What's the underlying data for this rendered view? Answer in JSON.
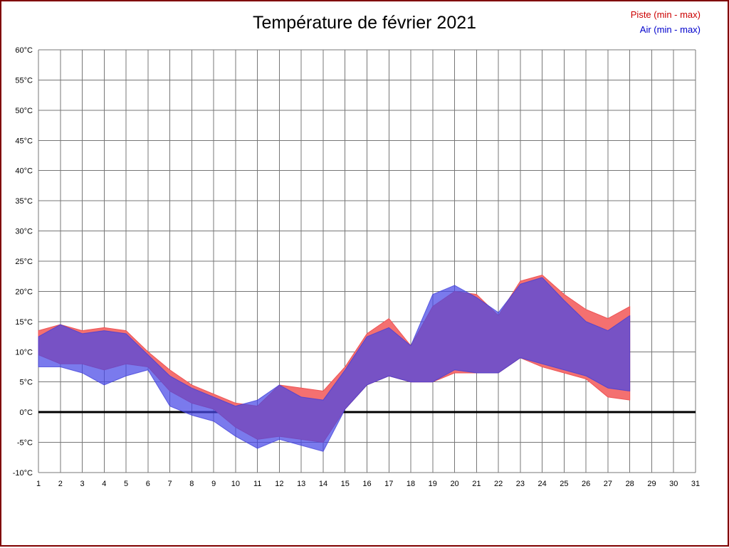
{
  "page": {
    "border_color": "#800000",
    "background": "#ffffff"
  },
  "chart": {
    "title": "Température de février 2021",
    "legend": [
      {
        "label": "Piste (min - max)",
        "color": "#cc0000"
      },
      {
        "label": "Air (min - max)",
        "color": "#0000cc"
      }
    ]
  },
  "chart_data": {
    "type": "area",
    "title": "Température de février 2021",
    "xlabel": "",
    "ylabel": "",
    "xlim": [
      1,
      31
    ],
    "ylim": [
      -10,
      60
    ],
    "grid": true,
    "zero_line": true,
    "legend_position": "top-right",
    "x": [
      1,
      2,
      3,
      4,
      5,
      6,
      7,
      8,
      9,
      10,
      11,
      12,
      13,
      14,
      15,
      16,
      17,
      18,
      19,
      20,
      21,
      22,
      23,
      24,
      25,
      26,
      27,
      28
    ],
    "series": [
      {
        "name": "Piste (min - max)",
        "band_name": "piste-band",
        "color": "#f47070",
        "stroke": "#ee5555",
        "min": [
          9.5,
          8,
          8,
          7,
          8,
          7.5,
          3.5,
          1.5,
          0.5,
          -2.5,
          -4.5,
          -4,
          -4.5,
          -5,
          0.5,
          4.5,
          6,
          5,
          5,
          6.5,
          6.5,
          6.5,
          9,
          7.5,
          6.5,
          5.5,
          2.5,
          2
        ],
        "max": [
          13.5,
          14.5,
          13.5,
          14,
          13.5,
          10,
          7,
          4.5,
          3,
          1.5,
          1,
          4.5,
          4,
          3.5,
          7.5,
          13,
          15.5,
          11,
          17.5,
          20,
          19.5,
          16,
          21.7,
          22.7,
          19.5,
          17,
          15.5,
          17.5
        ]
      },
      {
        "name": "Air (min - max)",
        "band_name": "air-band",
        "color": "#4646e6",
        "stroke": "#3a3ad8",
        "min": [
          7.5,
          7.5,
          6.5,
          4.5,
          6,
          7,
          1,
          -0.5,
          -1.5,
          -4,
          -6,
          -4.5,
          -5.5,
          -6.5,
          0.5,
          4.5,
          6,
          5,
          5,
          7,
          6.5,
          6.5,
          9,
          8,
          7,
          6,
          4,
          3.5
        ],
        "max": [
          12.5,
          14.5,
          13,
          13.5,
          13,
          9.5,
          6,
          4,
          2.5,
          1,
          2,
          4.5,
          2.5,
          2,
          7,
          12.5,
          14,
          11,
          19.5,
          21,
          19,
          16.5,
          21.2,
          22.3,
          18.5,
          15,
          13.5,
          16
        ]
      }
    ],
    "y_tick_values": [
      60,
      55,
      50,
      45,
      40,
      35,
      30,
      25,
      20,
      15,
      10,
      5,
      0,
      -5,
      -10
    ],
    "y_ticks": [
      "60°C",
      "55°C",
      "50°C",
      "45°C",
      "40°C",
      "35°C",
      "30°C",
      "25°C",
      "20°C",
      "15°C",
      "10°C",
      "5°C",
      "0°C",
      "-5°C",
      "-10°C"
    ],
    "x_tick_values": [
      1,
      2,
      3,
      4,
      5,
      6,
      7,
      8,
      9,
      10,
      11,
      12,
      13,
      14,
      15,
      16,
      17,
      18,
      19,
      20,
      21,
      22,
      23,
      24,
      25,
      26,
      27,
      28,
      29,
      30,
      31
    ],
    "x_ticks": [
      "1",
      "2",
      "3",
      "4",
      "5",
      "6",
      "7",
      "8",
      "9",
      "10",
      "11",
      "12",
      "13",
      "14",
      "15",
      "16",
      "17",
      "18",
      "19",
      "20",
      "21",
      "22",
      "23",
      "24",
      "25",
      "26",
      "27",
      "28",
      "29",
      "30",
      "31"
    ]
  }
}
